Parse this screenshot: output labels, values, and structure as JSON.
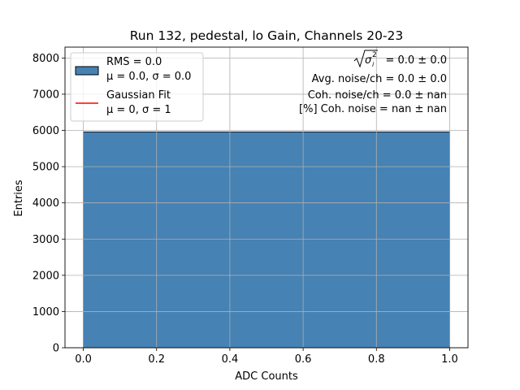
{
  "chart_data": {
    "type": "bar",
    "title": "Run 132, pedestal, lo Gain, Channels 20-23",
    "xlabel": "ADC Counts",
    "ylabel": "Entries",
    "xlim": [
      -0.05,
      1.05
    ],
    "ylim": [
      0,
      8300
    ],
    "xticks": [
      0.0,
      0.2,
      0.4,
      0.6,
      0.8,
      1.0
    ],
    "xtick_labels": [
      "0.0",
      "0.2",
      "0.4",
      "0.6",
      "0.8",
      "1.0"
    ],
    "yticks": [
      0,
      1000,
      2000,
      3000,
      4000,
      5000,
      6000,
      7000,
      8000
    ],
    "ytick_labels": [
      "0",
      "1000",
      "2000",
      "3000",
      "4000",
      "5000",
      "6000",
      "7000",
      "8000"
    ],
    "grid": true,
    "bins": [
      {
        "x0": 0.0,
        "x1": 1.0,
        "count": 5960
      }
    ],
    "bar_color": "#4682b4",
    "fit_color": "#ff0000",
    "legend": {
      "placement": "upper-left",
      "entries": [
        {
          "kind": "histogram",
          "line1": "RMS = 0.0",
          "line2": "μ = 0.0, σ = 0.0"
        },
        {
          "kind": "fit-line",
          "line1": "Gaussian Fit",
          "line2": "μ = 0, σ = 1"
        }
      ]
    },
    "annotations": {
      "placement": "upper-right",
      "sigma_value": "= 0.0 ± 0.0",
      "avg_noise": "Avg. noise/ch = 0.0 ± 0.0",
      "coh_noise": "Coh. noise/ch = 0.0 ± nan",
      "coh_percent": "[%] Coh. noise = nan ± nan"
    }
  }
}
